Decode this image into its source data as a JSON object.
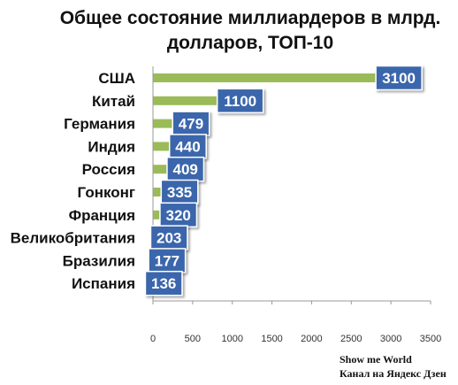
{
  "chart_data": {
    "type": "bar",
    "orientation": "horizontal",
    "title_lines": [
      "Общее состояние миллиардеров в млрд.",
      "долларов, ТОП-10"
    ],
    "categories": [
      "США",
      "Китай",
      "Германия",
      "Индия",
      "Россия",
      "Гонконг",
      "Франция",
      "Великобритания",
      "Бразилия",
      "Испания"
    ],
    "values": [
      3100,
      1100,
      479,
      440,
      409,
      335,
      320,
      203,
      177,
      136
    ],
    "data_labels": [
      "3100",
      "1100",
      "479",
      "440",
      "409",
      "335",
      "320",
      "203",
      "177",
      "136"
    ],
    "xlim": [
      0,
      3500
    ],
    "xticks": [
      0,
      500,
      1000,
      1500,
      2000,
      2500,
      3000,
      3500
    ],
    "xtick_labels": [
      "0",
      "500",
      "1000",
      "1500",
      "2000",
      "2500",
      "3000",
      "3500"
    ],
    "grid": false,
    "legend": "none",
    "bar_color": "#9bbb59",
    "label_box_color": "#3a66ac"
  },
  "watermark": {
    "line1": "Show me World",
    "line2": "Канал на Яндекс Дзен"
  }
}
